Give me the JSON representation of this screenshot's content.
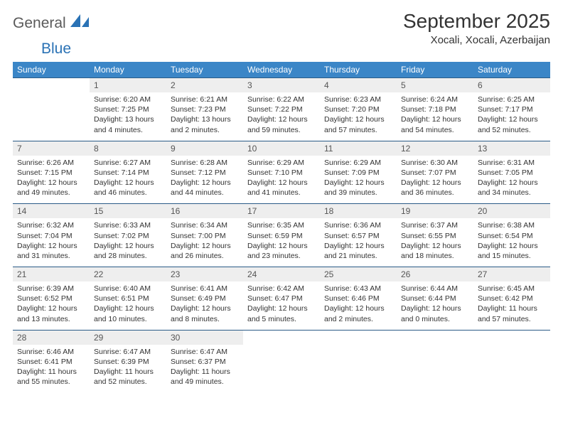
{
  "brand": {
    "part1": "General",
    "part2": "Blue"
  },
  "title": "September 2025",
  "location": "Xocali, Xocali, Azerbaijan",
  "colors": {
    "header_bg": "#3b86c7",
    "header_text": "#ffffff",
    "daynum_bg": "#eeeeee",
    "row_border": "#2a5b87",
    "brand_blue": "#2a72b5",
    "brand_gray": "#5a5a5a",
    "text": "#333333",
    "page_bg": "#ffffff"
  },
  "dow": [
    "Sunday",
    "Monday",
    "Tuesday",
    "Wednesday",
    "Thursday",
    "Friday",
    "Saturday"
  ],
  "weeks": [
    [
      {
        "n": "",
        "lines": []
      },
      {
        "n": "1",
        "lines": [
          "Sunrise: 6:20 AM",
          "Sunset: 7:25 PM",
          "Daylight: 13 hours and 4 minutes."
        ]
      },
      {
        "n": "2",
        "lines": [
          "Sunrise: 6:21 AM",
          "Sunset: 7:23 PM",
          "Daylight: 13 hours and 2 minutes."
        ]
      },
      {
        "n": "3",
        "lines": [
          "Sunrise: 6:22 AM",
          "Sunset: 7:22 PM",
          "Daylight: 12 hours and 59 minutes."
        ]
      },
      {
        "n": "4",
        "lines": [
          "Sunrise: 6:23 AM",
          "Sunset: 7:20 PM",
          "Daylight: 12 hours and 57 minutes."
        ]
      },
      {
        "n": "5",
        "lines": [
          "Sunrise: 6:24 AM",
          "Sunset: 7:18 PM",
          "Daylight: 12 hours and 54 minutes."
        ]
      },
      {
        "n": "6",
        "lines": [
          "Sunrise: 6:25 AM",
          "Sunset: 7:17 PM",
          "Daylight: 12 hours and 52 minutes."
        ]
      }
    ],
    [
      {
        "n": "7",
        "lines": [
          "Sunrise: 6:26 AM",
          "Sunset: 7:15 PM",
          "Daylight: 12 hours and 49 minutes."
        ]
      },
      {
        "n": "8",
        "lines": [
          "Sunrise: 6:27 AM",
          "Sunset: 7:14 PM",
          "Daylight: 12 hours and 46 minutes."
        ]
      },
      {
        "n": "9",
        "lines": [
          "Sunrise: 6:28 AM",
          "Sunset: 7:12 PM",
          "Daylight: 12 hours and 44 minutes."
        ]
      },
      {
        "n": "10",
        "lines": [
          "Sunrise: 6:29 AM",
          "Sunset: 7:10 PM",
          "Daylight: 12 hours and 41 minutes."
        ]
      },
      {
        "n": "11",
        "lines": [
          "Sunrise: 6:29 AM",
          "Sunset: 7:09 PM",
          "Daylight: 12 hours and 39 minutes."
        ]
      },
      {
        "n": "12",
        "lines": [
          "Sunrise: 6:30 AM",
          "Sunset: 7:07 PM",
          "Daylight: 12 hours and 36 minutes."
        ]
      },
      {
        "n": "13",
        "lines": [
          "Sunrise: 6:31 AM",
          "Sunset: 7:05 PM",
          "Daylight: 12 hours and 34 minutes."
        ]
      }
    ],
    [
      {
        "n": "14",
        "lines": [
          "Sunrise: 6:32 AM",
          "Sunset: 7:04 PM",
          "Daylight: 12 hours and 31 minutes."
        ]
      },
      {
        "n": "15",
        "lines": [
          "Sunrise: 6:33 AM",
          "Sunset: 7:02 PM",
          "Daylight: 12 hours and 28 minutes."
        ]
      },
      {
        "n": "16",
        "lines": [
          "Sunrise: 6:34 AM",
          "Sunset: 7:00 PM",
          "Daylight: 12 hours and 26 minutes."
        ]
      },
      {
        "n": "17",
        "lines": [
          "Sunrise: 6:35 AM",
          "Sunset: 6:59 PM",
          "Daylight: 12 hours and 23 minutes."
        ]
      },
      {
        "n": "18",
        "lines": [
          "Sunrise: 6:36 AM",
          "Sunset: 6:57 PM",
          "Daylight: 12 hours and 21 minutes."
        ]
      },
      {
        "n": "19",
        "lines": [
          "Sunrise: 6:37 AM",
          "Sunset: 6:55 PM",
          "Daylight: 12 hours and 18 minutes."
        ]
      },
      {
        "n": "20",
        "lines": [
          "Sunrise: 6:38 AM",
          "Sunset: 6:54 PM",
          "Daylight: 12 hours and 15 minutes."
        ]
      }
    ],
    [
      {
        "n": "21",
        "lines": [
          "Sunrise: 6:39 AM",
          "Sunset: 6:52 PM",
          "Daylight: 12 hours and 13 minutes."
        ]
      },
      {
        "n": "22",
        "lines": [
          "Sunrise: 6:40 AM",
          "Sunset: 6:51 PM",
          "Daylight: 12 hours and 10 minutes."
        ]
      },
      {
        "n": "23",
        "lines": [
          "Sunrise: 6:41 AM",
          "Sunset: 6:49 PM",
          "Daylight: 12 hours and 8 minutes."
        ]
      },
      {
        "n": "24",
        "lines": [
          "Sunrise: 6:42 AM",
          "Sunset: 6:47 PM",
          "Daylight: 12 hours and 5 minutes."
        ]
      },
      {
        "n": "25",
        "lines": [
          "Sunrise: 6:43 AM",
          "Sunset: 6:46 PM",
          "Daylight: 12 hours and 2 minutes."
        ]
      },
      {
        "n": "26",
        "lines": [
          "Sunrise: 6:44 AM",
          "Sunset: 6:44 PM",
          "Daylight: 12 hours and 0 minutes."
        ]
      },
      {
        "n": "27",
        "lines": [
          "Sunrise: 6:45 AM",
          "Sunset: 6:42 PM",
          "Daylight: 11 hours and 57 minutes."
        ]
      }
    ],
    [
      {
        "n": "28",
        "lines": [
          "Sunrise: 6:46 AM",
          "Sunset: 6:41 PM",
          "Daylight: 11 hours and 55 minutes."
        ]
      },
      {
        "n": "29",
        "lines": [
          "Sunrise: 6:47 AM",
          "Sunset: 6:39 PM",
          "Daylight: 11 hours and 52 minutes."
        ]
      },
      {
        "n": "30",
        "lines": [
          "Sunrise: 6:47 AM",
          "Sunset: 6:37 PM",
          "Daylight: 11 hours and 49 minutes."
        ]
      },
      {
        "n": "",
        "lines": []
      },
      {
        "n": "",
        "lines": []
      },
      {
        "n": "",
        "lines": []
      },
      {
        "n": "",
        "lines": []
      }
    ]
  ]
}
